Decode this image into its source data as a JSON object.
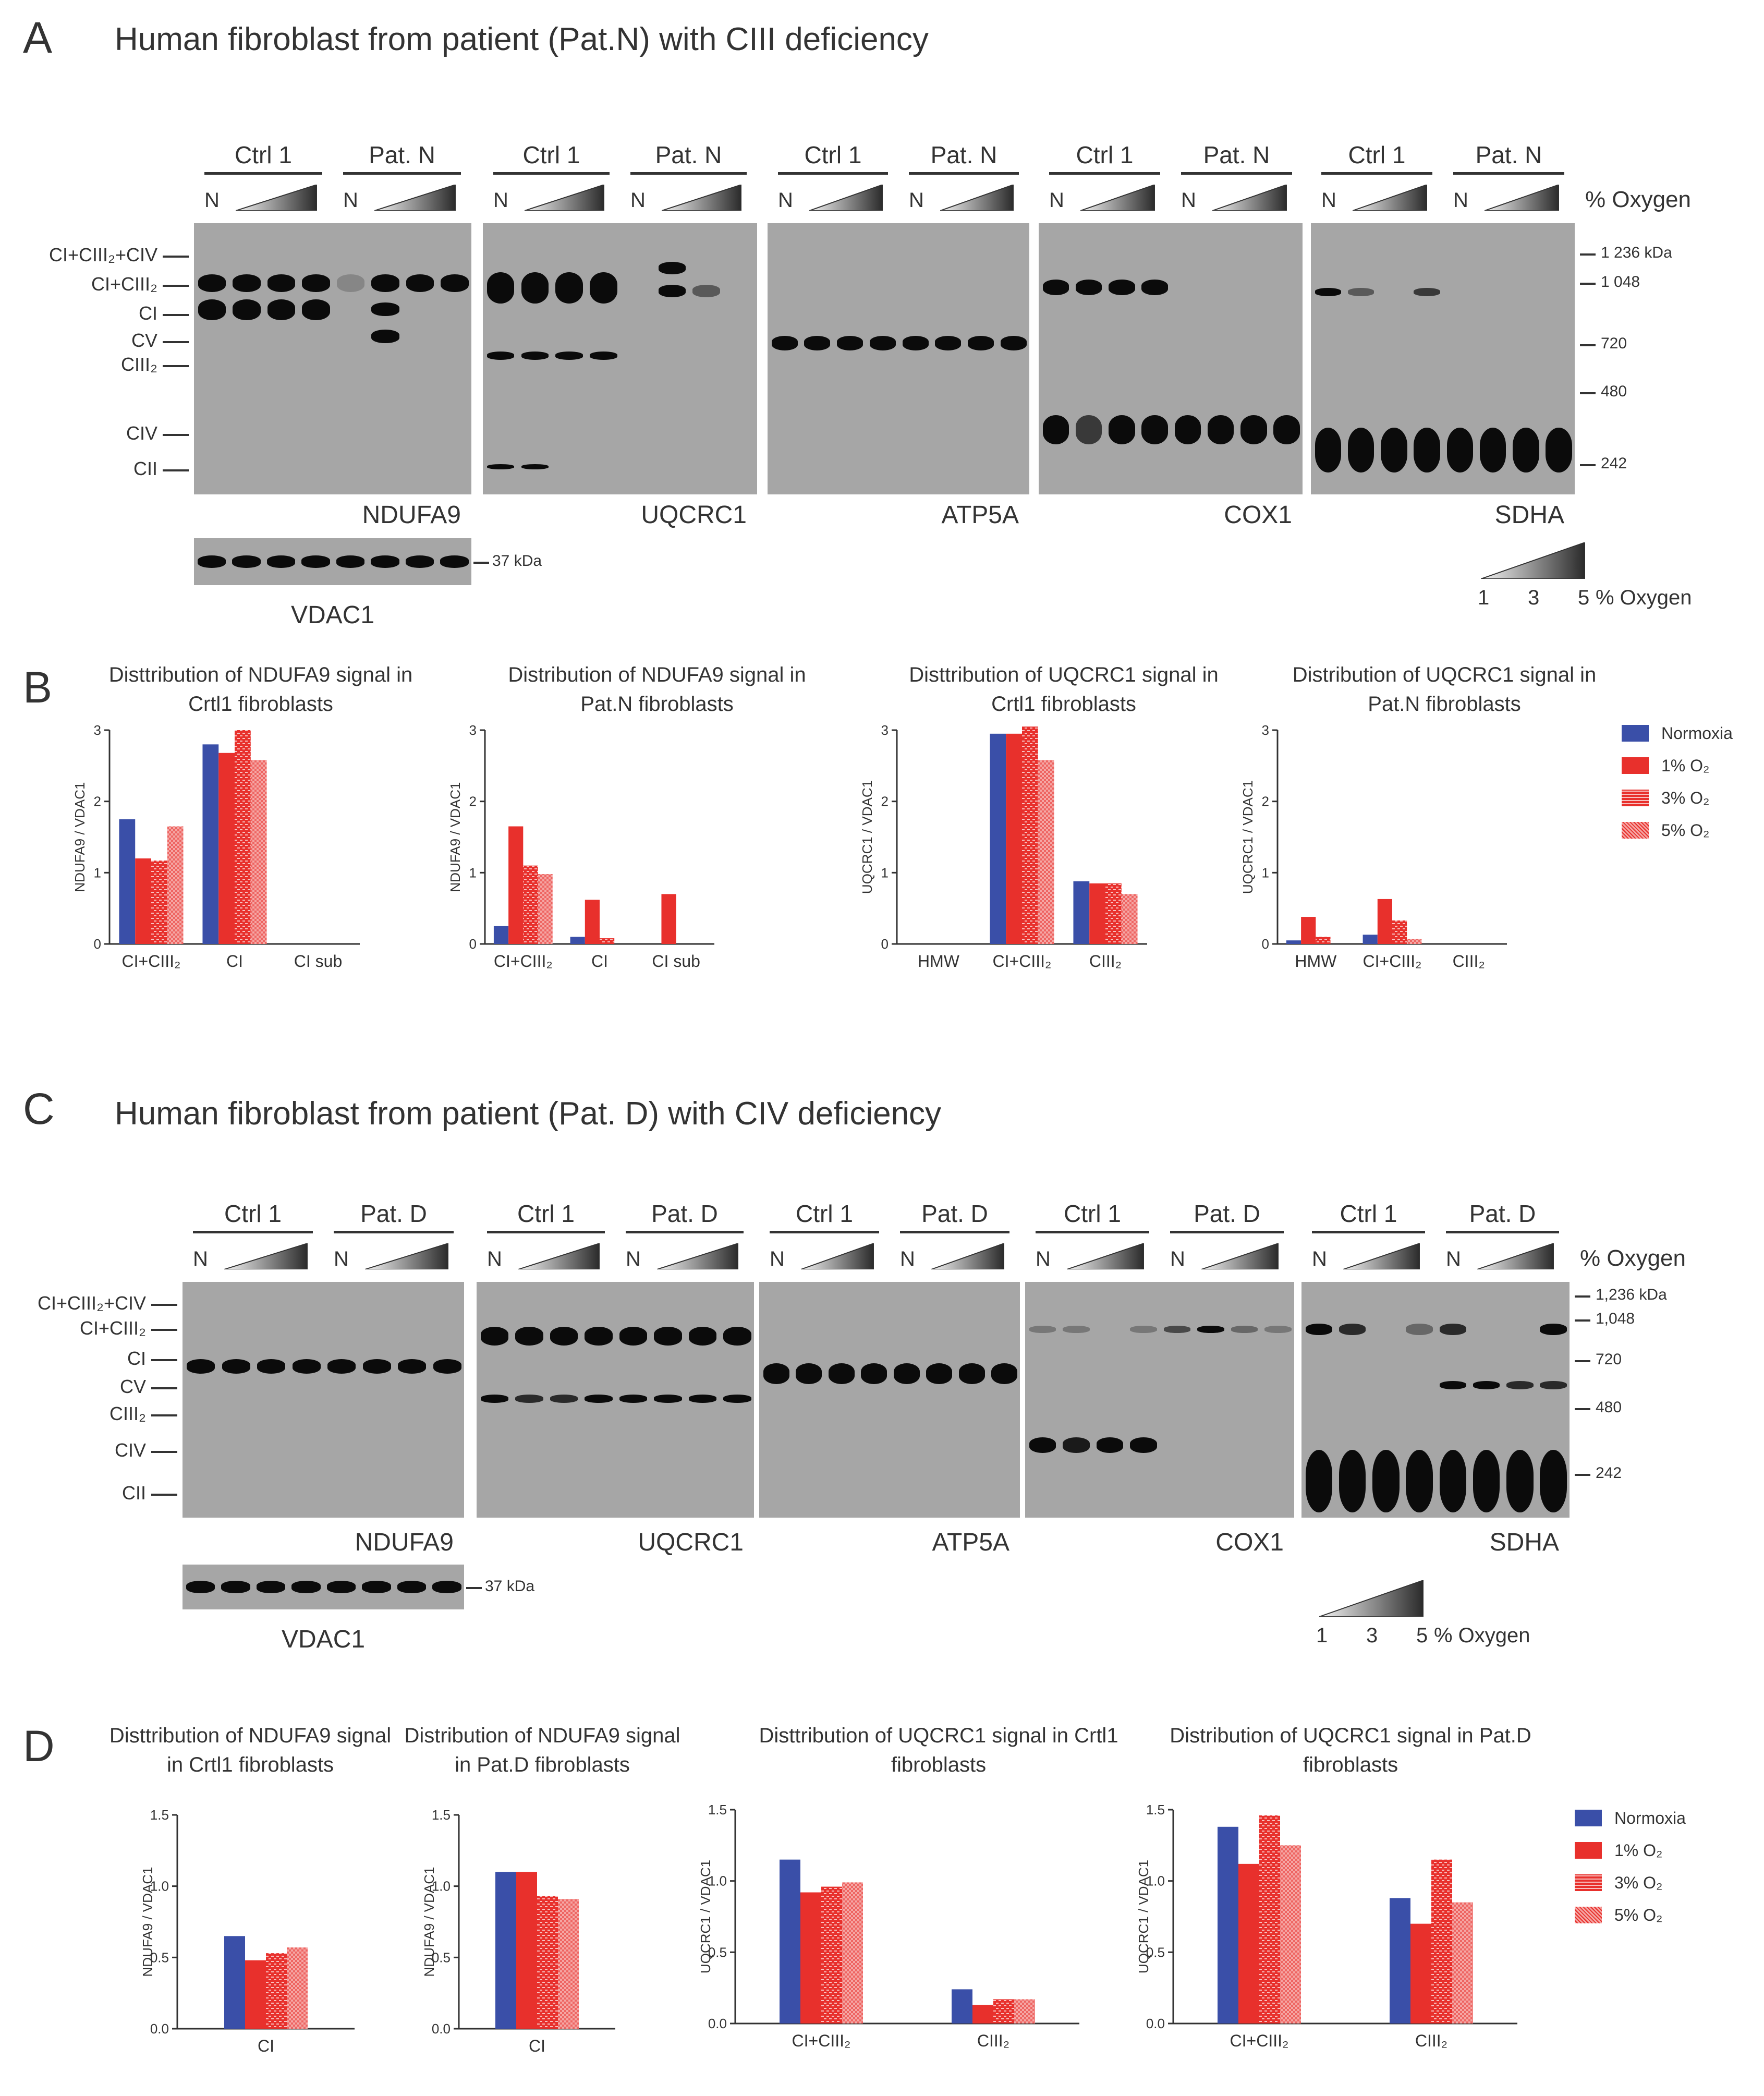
{
  "panels": {
    "A": {
      "letter": "A",
      "title": "Human fibroblast from patient (Pat.N) with CIII deficiency"
    },
    "B": {
      "letter": "B"
    },
    "C": {
      "letter": "C",
      "title": "Human fibroblast from patient (Pat. D) with CIV deficiency"
    },
    "D": {
      "letter": "D"
    }
  },
  "blot_A": {
    "groups": [
      {
        "ctrl": "Ctrl 1",
        "pat": "Pat. N",
        "antibody": "NDUFA9"
      },
      {
        "ctrl": "Ctrl 1",
        "pat": "Pat. N",
        "antibody": "UQCRC1"
      },
      {
        "ctrl": "Ctrl 1",
        "pat": "Pat. N",
        "antibody": "ATP5A"
      },
      {
        "ctrl": "Ctrl 1",
        "pat": "Pat. N",
        "antibody": "COX1"
      },
      {
        "ctrl": "Ctrl 1",
        "pat": "Pat. N",
        "antibody": "SDHA"
      }
    ],
    "n_label": "N",
    "oxygen_label": "% Oxygen",
    "complexes": [
      "CI+CIII₂+CIV",
      "CI+CIII₂",
      "CI",
      "CV",
      "CIII₂",
      "CIV",
      "CII"
    ],
    "mw_markers": [
      "1 236 kDa",
      "1 048",
      "720",
      "480",
      "242"
    ],
    "asterisk": "*",
    "loading": {
      "antibody": "VDAC1",
      "mw": "37 kDa"
    },
    "gradient": {
      "ticks": [
        "1",
        "3",
        "5"
      ],
      "label": "% Oxygen"
    }
  },
  "blot_C": {
    "groups": [
      {
        "ctrl": "Ctrl 1",
        "pat": "Pat. D",
        "antibody": "NDUFA9"
      },
      {
        "ctrl": "Ctrl 1",
        "pat": "Pat. D",
        "antibody": "UQCRC1"
      },
      {
        "ctrl": "Ctrl 1",
        "pat": "Pat. D",
        "antibody": "ATP5A"
      },
      {
        "ctrl": "Ctrl 1",
        "pat": "Pat. D",
        "antibody": "COX1"
      },
      {
        "ctrl": "Ctrl 1",
        "pat": "Pat. D",
        "antibody": "SDHA"
      }
    ],
    "n_label": "N",
    "oxygen_label": "% Oxygen",
    "complexes": [
      "CI+CIII₂+CIV",
      "CI+CIII₂",
      "CI",
      "CV",
      "CIII₂",
      "CIV",
      "CII"
    ],
    "mw_markers": [
      "1,236 kDa",
      "1,048",
      "720",
      "480",
      "242"
    ],
    "loading": {
      "antibody": "VDAC1",
      "mw": "37 kDa"
    },
    "gradient": {
      "ticks": [
        "1",
        "3",
        "5"
      ],
      "label": "% Oxygen"
    }
  },
  "legend": {
    "items": [
      "Normoxia",
      "1% O₂",
      "3% O₂",
      "5% O₂"
    ],
    "colors": [
      "#3a4fa8",
      "#e8302c",
      "#e8302c",
      "#f07a78"
    ]
  },
  "chart_data": [
    {
      "type": "bar",
      "panel": "B",
      "title": "Disttribution of NDUFA9 signal in Crtl1 fibroblasts",
      "ylabel": "NDUFA9 / VDAC1",
      "ylim": [
        0,
        3
      ],
      "yticks": [
        "0",
        "1",
        "2",
        "3"
      ],
      "categories": [
        "CI+CIII₂",
        "CI",
        "CI sub"
      ],
      "series": [
        {
          "name": "Normoxia",
          "values": [
            1.75,
            2.8,
            0
          ]
        },
        {
          "name": "1% O₂",
          "values": [
            1.2,
            2.68,
            0
          ]
        },
        {
          "name": "3% O₂",
          "values": [
            1.17,
            3.0,
            0
          ]
        },
        {
          "name": "5% O₂",
          "values": [
            1.65,
            2.58,
            0
          ]
        }
      ]
    },
    {
      "type": "bar",
      "panel": "B",
      "title": "Distribution of NDUFA9 signal in Pat.N fibroblasts",
      "ylabel": "NDUFA9 / VDAC1",
      "ylim": [
        0,
        3
      ],
      "yticks": [
        "0",
        "1",
        "2",
        "3"
      ],
      "categories": [
        "CI+CIII₂",
        "CI",
        "CI sub"
      ],
      "series": [
        {
          "name": "Normoxia",
          "values": [
            0.25,
            0.1,
            0
          ]
        },
        {
          "name": "1% O₂",
          "values": [
            1.65,
            0.62,
            0.7
          ]
        },
        {
          "name": "3% O₂",
          "values": [
            1.1,
            0.08,
            0
          ]
        },
        {
          "name": "5% O₂",
          "values": [
            0.98,
            0,
            0
          ]
        }
      ]
    },
    {
      "type": "bar",
      "panel": "B",
      "title": "Disttribution of UQCRC1 signal in Crtl1 fibroblasts",
      "ylabel": "UQCRC1 / VDAC1",
      "ylim": [
        0,
        3
      ],
      "yticks": [
        "0",
        "1",
        "2",
        "3"
      ],
      "categories": [
        "HMW",
        "CI+CIII₂",
        "CIII₂"
      ],
      "series": [
        {
          "name": "Normoxia",
          "values": [
            0,
            2.95,
            0.88
          ]
        },
        {
          "name": "1% O₂",
          "values": [
            0,
            2.95,
            0.85
          ]
        },
        {
          "name": "3% O₂",
          "values": [
            0,
            3.05,
            0.85
          ]
        },
        {
          "name": "5% O₂",
          "values": [
            0,
            2.58,
            0.7
          ]
        }
      ]
    },
    {
      "type": "bar",
      "panel": "B",
      "title": "Distribution of UQCRC1 signal in Pat.N fibroblasts",
      "ylabel": "UQCRC1 / VDAC1",
      "ylim": [
        0,
        3
      ],
      "yticks": [
        "0",
        "1",
        "2",
        "3"
      ],
      "categories": [
        "HMW",
        "CI+CIII₂",
        "CIII₂"
      ],
      "series": [
        {
          "name": "Normoxia",
          "values": [
            0.05,
            0.13,
            0
          ]
        },
        {
          "name": "1% O₂",
          "values": [
            0.38,
            0.63,
            0
          ]
        },
        {
          "name": "3% O₂",
          "values": [
            0.1,
            0.33,
            0
          ]
        },
        {
          "name": "5% O₂",
          "values": [
            0,
            0.07,
            0
          ]
        }
      ]
    },
    {
      "type": "bar",
      "panel": "D",
      "title": "Disttribution of NDUFA9 signal in Crtl1 fibroblasts",
      "ylabel": "NDUFA9 / VDAC1",
      "ylim": [
        0,
        1.5
      ],
      "yticks": [
        "0.0",
        "0.5",
        "1.0",
        "1.5"
      ],
      "categories": [
        "CI"
      ],
      "series": [
        {
          "name": "Normoxia",
          "values": [
            0.65
          ]
        },
        {
          "name": "1% O₂",
          "values": [
            0.48
          ]
        },
        {
          "name": "3% O₂",
          "values": [
            0.53
          ]
        },
        {
          "name": "5% O₂",
          "values": [
            0.57
          ]
        }
      ]
    },
    {
      "type": "bar",
      "panel": "D",
      "title": "Distribution of NDUFA9 signal in Pat.D fibroblasts",
      "ylabel": "NDUFA9 / VDAC1",
      "ylim": [
        0,
        1.5
      ],
      "yticks": [
        "0.0",
        "0.5",
        "1.0",
        "1.5"
      ],
      "categories": [
        "CI"
      ],
      "series": [
        {
          "name": "Normoxia",
          "values": [
            1.1
          ]
        },
        {
          "name": "1% O₂",
          "values": [
            1.1
          ]
        },
        {
          "name": "3% O₂",
          "values": [
            0.93
          ]
        },
        {
          "name": "5% O₂",
          "values": [
            0.91
          ]
        }
      ]
    },
    {
      "type": "bar",
      "panel": "D",
      "title": "Disttribution of UQCRC1 signal in Crtl1 fibroblasts",
      "ylabel": "UQCRC1 / VDAC1",
      "ylim": [
        0,
        1.5
      ],
      "yticks": [
        "0.0",
        "0.5",
        "1.0",
        "1.5"
      ],
      "categories": [
        "CI+CIII₂",
        "CIII₂"
      ],
      "series": [
        {
          "name": "Normoxia",
          "values": [
            1.15,
            0.24
          ]
        },
        {
          "name": "1% O₂",
          "values": [
            0.92,
            0.13
          ]
        },
        {
          "name": "3% O₂",
          "values": [
            0.96,
            0.17
          ]
        },
        {
          "name": "5% O₂",
          "values": [
            0.99,
            0.17
          ]
        }
      ]
    },
    {
      "type": "bar",
      "panel": "D",
      "title": "Distribution of UQCRC1 signal in Pat.D fibroblasts",
      "ylabel": "UQCRC1 / VDAC1",
      "ylim": [
        0,
        1.5
      ],
      "yticks": [
        "0.0",
        "0.5",
        "1.0",
        "1.5"
      ],
      "categories": [
        "CI+CIII₂",
        "CIII₂"
      ],
      "series": [
        {
          "name": "Normoxia",
          "values": [
            1.38,
            0.88
          ]
        },
        {
          "name": "1% O₂",
          "values": [
            1.12,
            0.7
          ]
        },
        {
          "name": "3% O₂",
          "values": [
            1.46,
            1.15
          ]
        },
        {
          "name": "5% O₂",
          "values": [
            1.25,
            0.85
          ]
        }
      ]
    }
  ]
}
